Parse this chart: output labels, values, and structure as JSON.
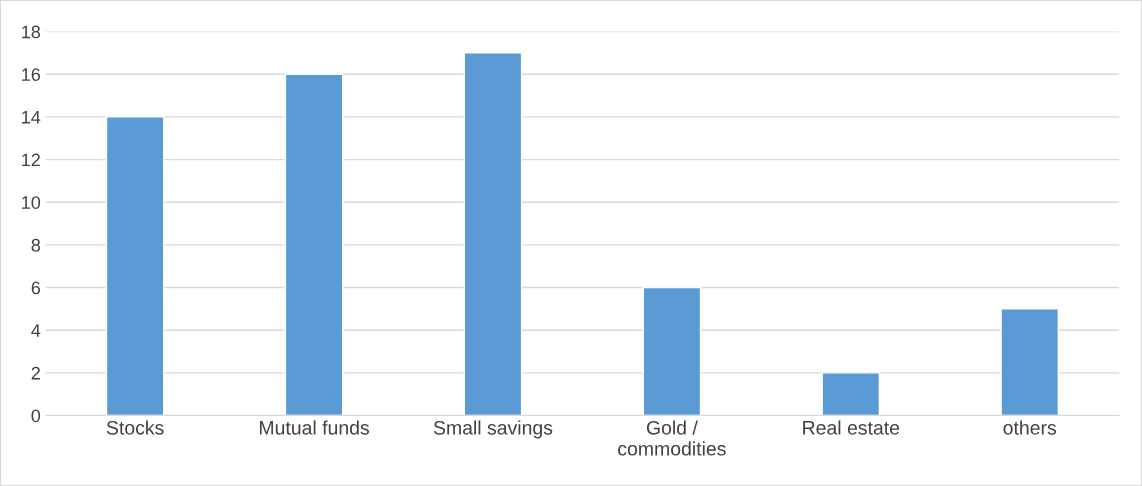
{
  "chart_data": {
    "type": "bar",
    "categories": [
      "Stocks",
      "Mutual funds",
      "Small savings",
      "Gold /\ncommodities",
      "Real estate",
      "others"
    ],
    "values": [
      14,
      16,
      17,
      6,
      2,
      5
    ],
    "color": "#5b9bd5",
    "ylim": [
      0,
      18
    ],
    "yticks": [
      0,
      2,
      4,
      6,
      8,
      10,
      12,
      14,
      16,
      18
    ],
    "grid": "y",
    "legend": false
  }
}
